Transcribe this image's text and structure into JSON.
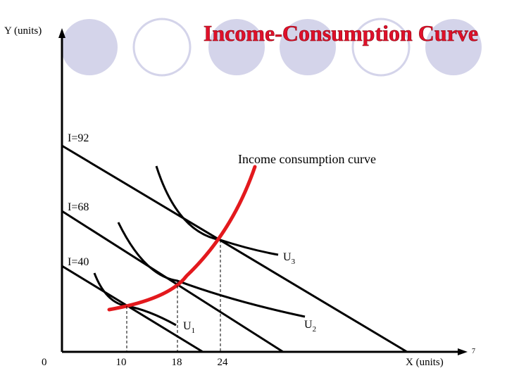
{
  "slide": {
    "title": "Income-Consumption Curve",
    "page_number": "7",
    "colors": {
      "title": "#e0102a",
      "circle_fill": "#d4d4ea",
      "circle_stroke": "#d4d4ea",
      "curve": "#e3191d",
      "line": "#000000"
    }
  },
  "diagram": {
    "y_axis_label": "Y (units)",
    "x_axis_label": "X (units)",
    "origin_label": "0",
    "budget_lines": [
      {
        "label": "I=92"
      },
      {
        "label": "I=68"
      },
      {
        "label": "I=40"
      }
    ],
    "indifference_curves": [
      {
        "label": "U",
        "subscript": "1"
      },
      {
        "label": "U",
        "subscript": "2"
      },
      {
        "label": "U",
        "subscript": "3"
      }
    ],
    "x_ticks": [
      "10",
      "18",
      "24"
    ],
    "icc_label": "Income consumption curve"
  }
}
